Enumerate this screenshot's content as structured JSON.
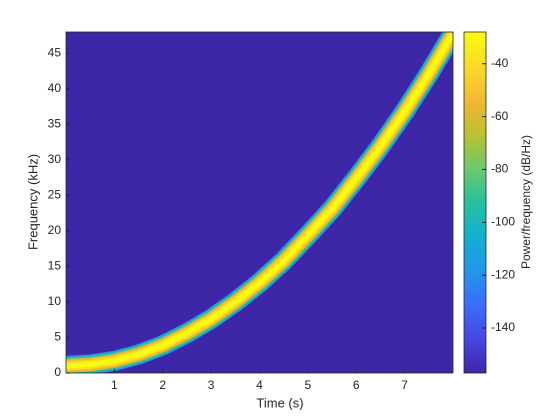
{
  "chart_data": {
    "type": "spectrogram",
    "x_label": "Time (s)",
    "y_label": "Frequency (kHz)",
    "colorbar_label": "Power/frequency (dB/Hz)",
    "x": [
      0,
      0.5,
      1,
      1.5,
      2,
      2.5,
      3,
      3.5,
      4,
      4.5,
      5,
      5.5,
      6,
      6.5,
      7,
      7.5,
      8
    ],
    "values": [
      1,
      1.2,
      1.7,
      2.6,
      3.9,
      5.6,
      7.6,
      10,
      12.7,
      15.8,
      19.4,
      23.1,
      27.4,
      31.9,
      36.8,
      42.1,
      47.8
    ],
    "xlim": [
      0,
      8
    ],
    "xticks": [
      1,
      2,
      3,
      4,
      5,
      6,
      7
    ],
    "ylim": [
      0,
      48
    ],
    "yticks": [
      0,
      5,
      10,
      15,
      20,
      25,
      30,
      35,
      40,
      45
    ],
    "clim": [
      -157,
      -28
    ],
    "cticks": [
      -140,
      -120,
      -100,
      -80,
      -60,
      -40
    ],
    "colormap": [
      "#3e26a8",
      "#4745e4",
      "#3a6efd",
      "#2295eb",
      "#12b1d0",
      "#27c0a0",
      "#6cc96a",
      "#bdc12f",
      "#f3b735",
      "#fbdc26",
      "#f9fb0e"
    ]
  }
}
